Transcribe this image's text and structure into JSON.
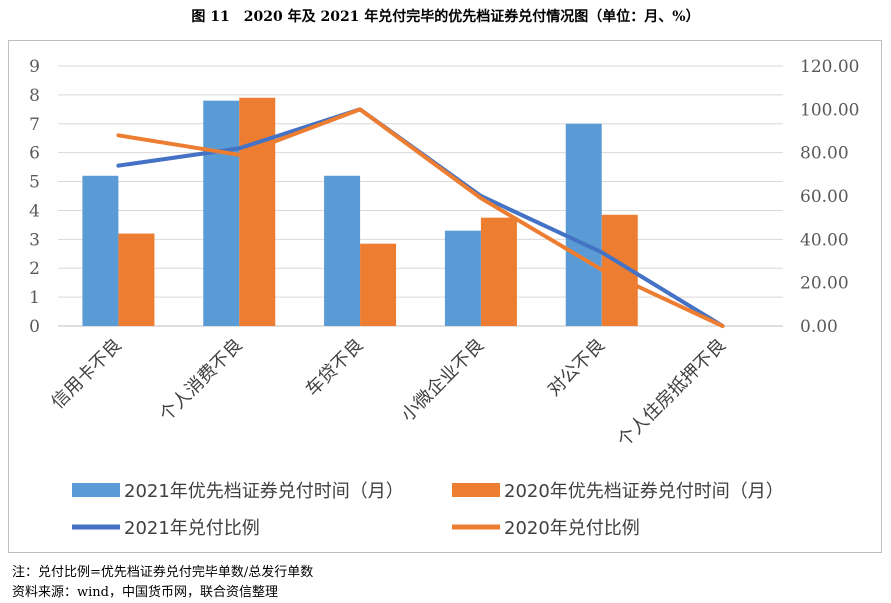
{
  "figure": {
    "title": "图 11　2020 年及 2021 年兑付完毕的优先档证券兑付情况图（单位：月、%）"
  },
  "chart_data": {
    "type": "bar+line",
    "categories": [
      "信用卡不良",
      "个人消费不良",
      "车贷不良",
      "小微企业不良",
      "对公不良",
      "个人住房抵押不良"
    ],
    "bar_series": [
      {
        "name": "2021年优先档证券兑付时间（月）",
        "color": "#5B9BD5",
        "values": [
          5.2,
          7.8,
          5.2,
          3.3,
          7.0,
          0
        ]
      },
      {
        "name": "2020年优先档证券兑付时间（月）",
        "color": "#ED7D31",
        "values": [
          3.2,
          7.9,
          2.85,
          3.75,
          3.85,
          0
        ]
      }
    ],
    "line_series": [
      {
        "name": "2021年兑付比例",
        "color": "#4472C4",
        "values": [
          74,
          82,
          100,
          60,
          34,
          0
        ]
      },
      {
        "name": "2020年兑付比例",
        "color": "#ED7D31",
        "values": [
          88,
          79,
          100,
          59,
          26,
          0
        ]
      }
    ],
    "y_left": {
      "min": 0,
      "max": 9,
      "ticks": [
        "0",
        "1",
        "2",
        "3",
        "4",
        "5",
        "6",
        "7",
        "8",
        "9"
      ]
    },
    "y_right": {
      "min": 0,
      "max": 120,
      "ticks": [
        "0.00",
        "20.00",
        "40.00",
        "60.00",
        "80.00",
        "100.00",
        "120.00"
      ]
    },
    "legend_position": "bottom"
  },
  "notes": {
    "formula": "注：兑付比例=优先档证券兑付完毕单数/总发行单数",
    "source": "资料来源：wind，中国货币网，联合资信整理"
  }
}
